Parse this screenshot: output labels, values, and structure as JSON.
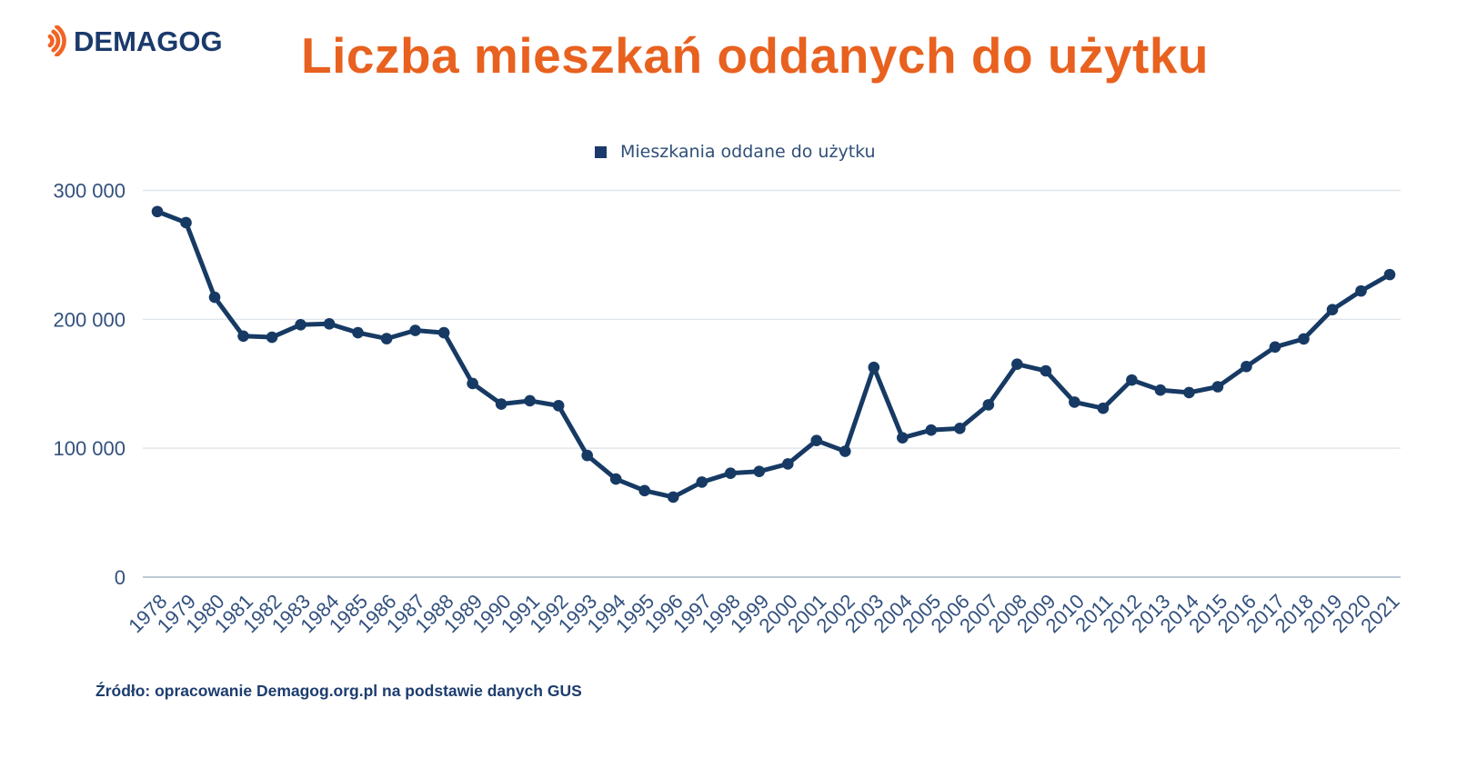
{
  "logo": {
    "brand": "DEMAGOG"
  },
  "header": {
    "title": "Liczba mieszkań oddanych do użytku"
  },
  "legend": {
    "label": "Mieszkania oddane do użytku"
  },
  "footer": {
    "source": "Źródło: opracowanie Demagog.org.pl na podstawie danych GUS"
  },
  "colors": {
    "accent_orange": "#E8611F",
    "brand_navy": "#1B3A6B",
    "line_navy": "#173A64",
    "label_blue": "#33517E",
    "gridline": "#E0E6EC",
    "axis_line": "#A8B7C7",
    "background": "#FFFFFF"
  },
  "chart_data": {
    "type": "line",
    "title": "Liczba mieszkań oddanych do użytku",
    "series_name": "Mieszkania oddane do użytku",
    "x": [
      1978,
      1979,
      1980,
      1981,
      1982,
      1983,
      1984,
      1985,
      1986,
      1987,
      1988,
      1989,
      1990,
      1991,
      1992,
      1993,
      1994,
      1995,
      1996,
      1997,
      1998,
      1999,
      2000,
      2001,
      2002,
      2003,
      2004,
      2005,
      2006,
      2007,
      2008,
      2009,
      2010,
      2011,
      2012,
      2013,
      2014,
      2015,
      2016,
      2017,
      2018,
      2019,
      2020,
      2021
    ],
    "values": [
      283600,
      275000,
      217100,
      187000,
      186100,
      195800,
      196500,
      189600,
      185000,
      191400,
      189600,
      150200,
      134300,
      136800,
      133000,
      94400,
      76100,
      67100,
      62100,
      73700,
      80600,
      82000,
      87800,
      106000,
      97600,
      162700,
      108100,
      114100,
      115400,
      133700,
      165200,
      160000,
      135800,
      131000,
      152900,
      145100,
      143200,
      147700,
      163400,
      178500,
      184800,
      207500,
      222000,
      234700
    ],
    "xlabel": "",
    "ylabel": "",
    "ylim": [
      0,
      300000
    ],
    "yticks": [
      0,
      100000,
      200000,
      300000
    ],
    "ytick_labels": [
      "0",
      "100 000",
      "200 000",
      "300 000"
    ],
    "grid": true,
    "legend_position": "top-center",
    "line_color": "#173A64",
    "marker": "circle"
  }
}
